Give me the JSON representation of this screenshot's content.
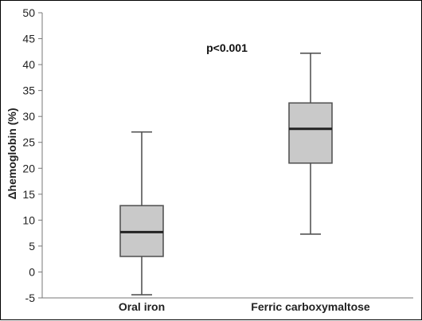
{
  "chart_data": {
    "type": "box",
    "title": "",
    "xlabel": "",
    "ylabel": "Δhemoglobin (%)",
    "ylim": [
      -5,
      50
    ],
    "yticks": [
      -5,
      0,
      5,
      10,
      15,
      20,
      25,
      30,
      35,
      40,
      45,
      50
    ],
    "grid": false,
    "categories": [
      "Oral iron",
      "Ferric carboxymaltose"
    ],
    "boxes": [
      {
        "category": "Oral iron",
        "min": -4.4,
        "q1": 3.0,
        "median": 7.7,
        "q3": 12.8,
        "max": 27.0
      },
      {
        "category": "Ferric carboxymaltose",
        "min": 7.3,
        "q1": 21.0,
        "median": 27.6,
        "q3": 32.6,
        "max": 42.2
      }
    ],
    "annotation": "p<0.001",
    "colors": {
      "box_fill": "#c9c9c9",
      "box_stroke": "#555555",
      "median": "#222222",
      "axis": "#777777"
    }
  }
}
